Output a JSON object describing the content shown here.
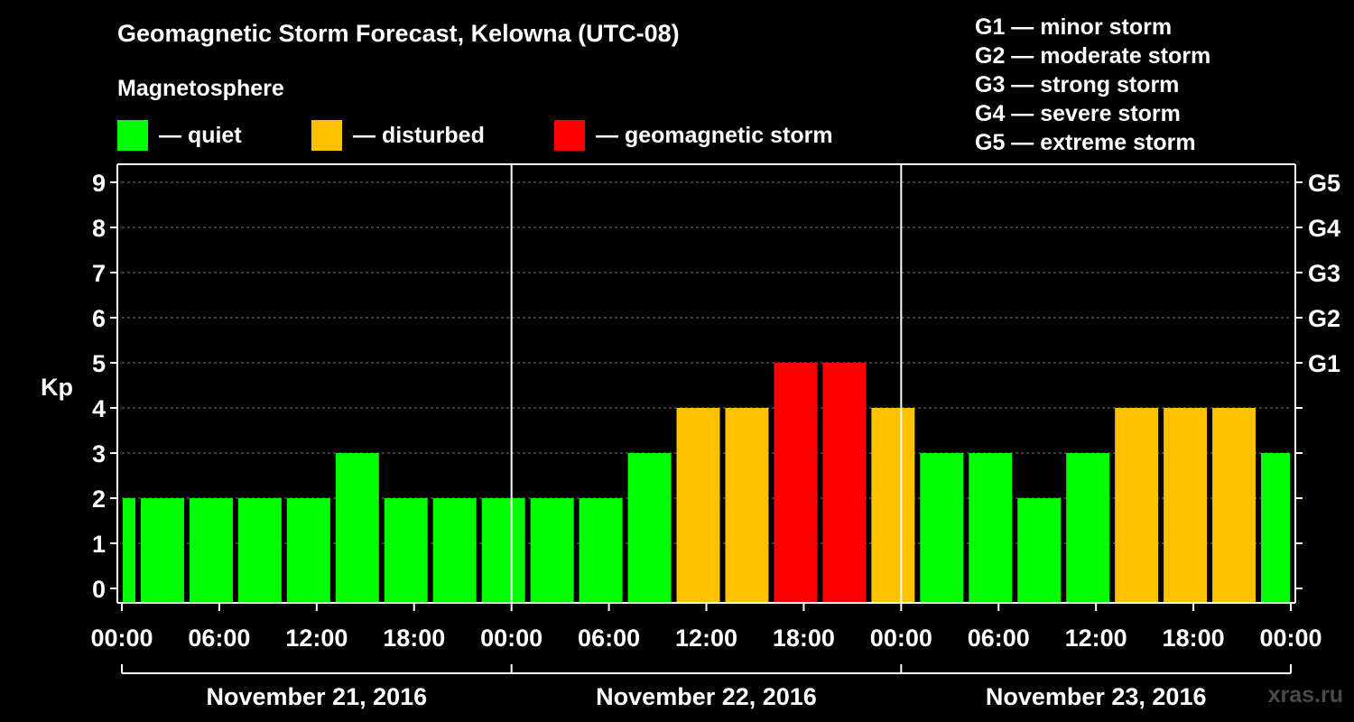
{
  "title": "Geomagnetic Storm Forecast, Kelowna (UTC-08)",
  "magnetosphere": {
    "heading": "Magnetosphere",
    "legend": [
      {
        "label": "— quiet",
        "color": "#00ff00"
      },
      {
        "label": "— disturbed",
        "color": "#ffc000"
      },
      {
        "label": "— geomagnetic storm",
        "color": "#ff0000"
      }
    ]
  },
  "g_scale": [
    "G1 — minor storm",
    "G2 — moderate storm",
    "G3 — strong storm",
    "G4 — severe storm",
    "G5 — extreme storm"
  ],
  "watermark": "xras.ru",
  "chart_data": {
    "type": "bar",
    "ylabel": "Kp",
    "ylim": [
      0,
      9
    ],
    "y_ticks": [
      "0",
      "1",
      "2",
      "3",
      "4",
      "5",
      "6",
      "7",
      "8",
      "9"
    ],
    "right_axis_labels": [
      {
        "kp": 5,
        "label": "G1"
      },
      {
        "kp": 6,
        "label": "G2"
      },
      {
        "kp": 7,
        "label": "G3"
      },
      {
        "kp": 8,
        "label": "G4"
      },
      {
        "kp": 9,
        "label": "G5"
      }
    ],
    "x_tick_labels": [
      "00:00",
      "06:00",
      "12:00",
      "18:00",
      "00:00",
      "06:00",
      "12:00",
      "18:00",
      "00:00",
      "06:00",
      "12:00",
      "18:00",
      "00:00"
    ],
    "day_labels": [
      "November 21, 2016",
      "November 22, 2016",
      "November 23, 2016"
    ],
    "grid": "horizontal dashed",
    "bars": [
      {
        "start": "2016-11-21 00:00",
        "end": "2016-11-21 01:00",
        "kp": 2,
        "status": "quiet"
      },
      {
        "start": "2016-11-21 01:00",
        "end": "2016-11-21 04:00",
        "kp": 2,
        "status": "quiet"
      },
      {
        "start": "2016-11-21 04:00",
        "end": "2016-11-21 07:00",
        "kp": 2,
        "status": "quiet"
      },
      {
        "start": "2016-11-21 07:00",
        "end": "2016-11-21 10:00",
        "kp": 2,
        "status": "quiet"
      },
      {
        "start": "2016-11-21 10:00",
        "end": "2016-11-21 13:00",
        "kp": 2,
        "status": "quiet"
      },
      {
        "start": "2016-11-21 13:00",
        "end": "2016-11-21 16:00",
        "kp": 3,
        "status": "quiet"
      },
      {
        "start": "2016-11-21 16:00",
        "end": "2016-11-21 19:00",
        "kp": 2,
        "status": "quiet"
      },
      {
        "start": "2016-11-21 19:00",
        "end": "2016-11-21 22:00",
        "kp": 2,
        "status": "quiet"
      },
      {
        "start": "2016-11-21 22:00",
        "end": "2016-11-22 01:00",
        "kp": 2,
        "status": "quiet"
      },
      {
        "start": "2016-11-22 01:00",
        "end": "2016-11-22 04:00",
        "kp": 2,
        "status": "quiet"
      },
      {
        "start": "2016-11-22 04:00",
        "end": "2016-11-22 07:00",
        "kp": 2,
        "status": "quiet"
      },
      {
        "start": "2016-11-22 07:00",
        "end": "2016-11-22 10:00",
        "kp": 3,
        "status": "quiet"
      },
      {
        "start": "2016-11-22 10:00",
        "end": "2016-11-22 13:00",
        "kp": 4,
        "status": "disturbed"
      },
      {
        "start": "2016-11-22 13:00",
        "end": "2016-11-22 16:00",
        "kp": 4,
        "status": "disturbed"
      },
      {
        "start": "2016-11-22 16:00",
        "end": "2016-11-22 19:00",
        "kp": 5,
        "status": "storm"
      },
      {
        "start": "2016-11-22 19:00",
        "end": "2016-11-22 22:00",
        "kp": 5,
        "status": "storm"
      },
      {
        "start": "2016-11-22 22:00",
        "end": "2016-11-23 01:00",
        "kp": 4,
        "status": "disturbed"
      },
      {
        "start": "2016-11-23 01:00",
        "end": "2016-11-23 04:00",
        "kp": 3,
        "status": "quiet"
      },
      {
        "start": "2016-11-23 04:00",
        "end": "2016-11-23 07:00",
        "kp": 3,
        "status": "quiet"
      },
      {
        "start": "2016-11-23 07:00",
        "end": "2016-11-23 10:00",
        "kp": 2,
        "status": "quiet"
      },
      {
        "start": "2016-11-23 10:00",
        "end": "2016-11-23 13:00",
        "kp": 3,
        "status": "quiet"
      },
      {
        "start": "2016-11-23 13:00",
        "end": "2016-11-23 16:00",
        "kp": 4,
        "status": "disturbed"
      },
      {
        "start": "2016-11-23 16:00",
        "end": "2016-11-23 19:00",
        "kp": 4,
        "status": "disturbed"
      },
      {
        "start": "2016-11-23 19:00",
        "end": "2016-11-23 22:00",
        "kp": 4,
        "status": "disturbed"
      },
      {
        "start": "2016-11-23 22:00",
        "end": "2016-11-24 00:00",
        "kp": 3,
        "status": "quiet"
      }
    ],
    "status_colors": {
      "quiet": "#00ff00",
      "disturbed": "#ffc000",
      "storm": "#ff0000"
    }
  }
}
